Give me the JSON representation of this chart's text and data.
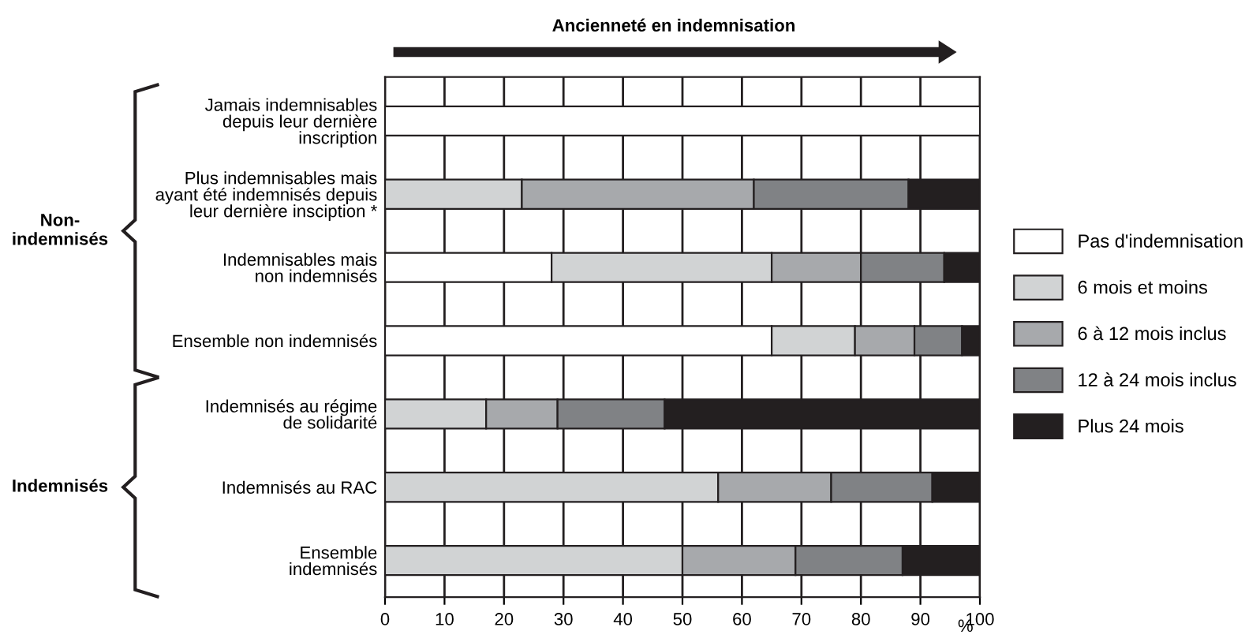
{
  "chart_data": {
    "type": "bar",
    "orientation": "horizontal",
    "stacked": true,
    "title": "Ancienneté en indemnisation",
    "xlabel": "%",
    "categories": [
      "Jamais indemnisables\ndepuis leur dernière\ninscription",
      "Plus indemnisables mais\nayant été indemnisés depuis\nleur dernière insciption *",
      "Indemnisables mais\nnon indemnisés",
      "Ensemble non indemnisés",
      "Indemnisés au régime\nde solidarité",
      "Indemnisés au RAC",
      "Ensemble\nindemnisés"
    ],
    "series": [
      {
        "name": "Pas d'indemnisation",
        "color": "#ffffff",
        "values": [
          100,
          0,
          28,
          65,
          0,
          0,
          0
        ]
      },
      {
        "name": "6 mois et moins",
        "color": "#d1d3d4",
        "values": [
          0,
          23,
          37,
          14,
          17,
          56,
          50
        ]
      },
      {
        "name": "6 à 12 mois inclus",
        "color": "#a7a9ac",
        "values": [
          0,
          39,
          15,
          10,
          12,
          19,
          19
        ]
      },
      {
        "name": "12 à 24 mois inclus",
        "color": "#808285",
        "values": [
          0,
          26,
          14,
          8,
          18,
          17,
          18
        ]
      },
      {
        "name": "Plus 24 mois",
        "color": "#231f20",
        "values": [
          0,
          12,
          6,
          3,
          53,
          8,
          13
        ]
      }
    ],
    "xlim": [
      0,
      100
    ],
    "xticks": [
      0,
      10,
      20,
      30,
      40,
      50,
      60,
      70,
      80,
      90,
      100
    ],
    "grid": "x",
    "legend": "right",
    "annotations": [
      "Non-\nindemnisés",
      "Indemnisés"
    ]
  }
}
